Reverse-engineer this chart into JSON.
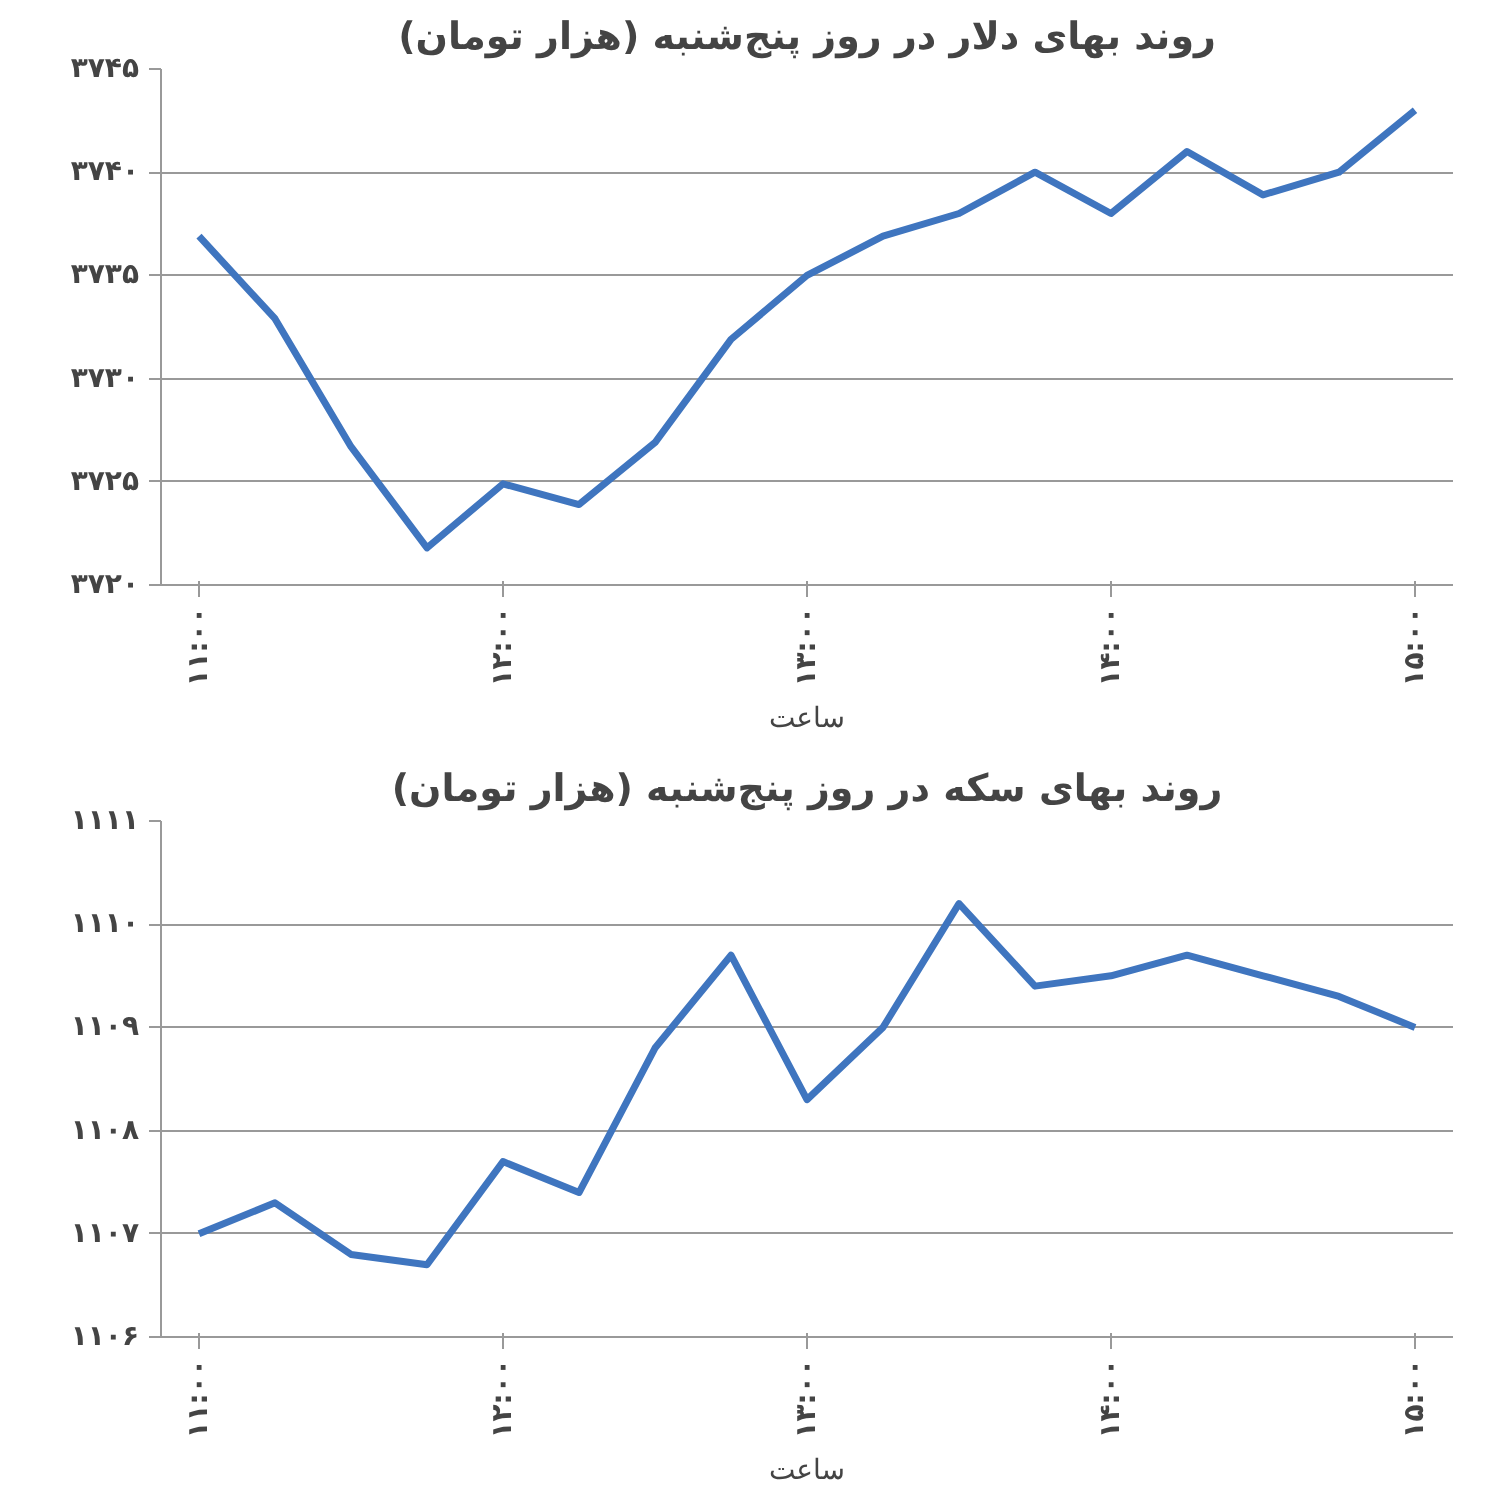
{
  "chart_data": [
    {
      "type": "line",
      "title": "روند بهای دلار در روز پنج‌شنبه (هزار تومان)",
      "xlabel": "ساعت",
      "x": [
        11,
        11.25,
        11.5,
        11.75,
        12,
        12.25,
        12.5,
        12.75,
        13,
        13.25,
        13.5,
        13.75,
        14,
        14.25,
        14.5,
        14.75,
        15
      ],
      "series": [
        {
          "color": "#3f75bf",
          "values": [
            3736.9,
            3732.9,
            3726.7,
            3721.8,
            3724.9,
            3723.9,
            3726.9,
            3731.9,
            3735,
            3736.9,
            3738,
            3740,
            3738,
            3741,
            3738.9,
            3740,
            3743
          ]
        }
      ],
      "xlim": [
        10.875,
        15.125
      ],
      "xticks": [
        {
          "value": 11,
          "label": "۱۱:۰۰"
        },
        {
          "value": 12,
          "label": "۱۲:۰۰"
        },
        {
          "value": 13,
          "label": "۱۳:۰۰"
        },
        {
          "value": 14,
          "label": "۱۴:۰۰"
        },
        {
          "value": 15,
          "label": "۱۵:۰۰"
        }
      ],
      "ylim": [
        3720,
        3745
      ],
      "yticks": [
        {
          "value": 3720,
          "label": "۳۷۲۰"
        },
        {
          "value": 3725,
          "label": "۳۷۲۵"
        },
        {
          "value": 3730,
          "label": "۳۷۳۰"
        },
        {
          "value": 3735,
          "label": "۳۷۳۵"
        },
        {
          "value": 3740,
          "label": "۳۷۴۰"
        },
        {
          "value": 3745,
          "label": "۳۷۴۵"
        }
      ],
      "grid": "y",
      "marker": "none",
      "line_style": "solid"
    },
    {
      "type": "line",
      "title": "روند بهای سکه در روز پنج‌شنبه (هزار تومان)",
      "xlabel": "ساعت",
      "x": [
        11,
        11.25,
        11.5,
        11.75,
        12,
        12.25,
        12.5,
        12.75,
        13,
        13.25,
        13.5,
        13.75,
        14,
        14.25,
        14.5,
        14.75,
        15
      ],
      "series": [
        {
          "color": "#3f75bf",
          "values": [
            1107,
            1107.3,
            1106.8,
            1106.7,
            1107.7,
            1107.4,
            1108.8,
            1109.7,
            1108.3,
            1109,
            1110.2,
            1109.4,
            1109.5,
            1109.7,
            1109.5,
            1109.3,
            1109
          ]
        }
      ],
      "xlim": [
        10.875,
        15.125
      ],
      "xticks": [
        {
          "value": 11,
          "label": "۱۱:۰۰"
        },
        {
          "value": 12,
          "label": "۱۲:۰۰"
        },
        {
          "value": 13,
          "label": "۱۳:۰۰"
        },
        {
          "value": 14,
          "label": "۱۴:۰۰"
        },
        {
          "value": 15,
          "label": "۱۵:۰۰"
        }
      ],
      "ylim": [
        1106,
        1111
      ],
      "yticks": [
        {
          "value": 1106,
          "label": "۱۱۰۶"
        },
        {
          "value": 1107,
          "label": "۱۱۰۷"
        },
        {
          "value": 1108,
          "label": "۱۱۰۸"
        },
        {
          "value": 1109,
          "label": "۱۱۰۹"
        },
        {
          "value": 1110,
          "label": "۱۱۱۰"
        },
        {
          "value": 1111,
          "label": "۱۱۱۱"
        }
      ],
      "grid": "y",
      "marker": "none",
      "line_style": "solid"
    }
  ]
}
